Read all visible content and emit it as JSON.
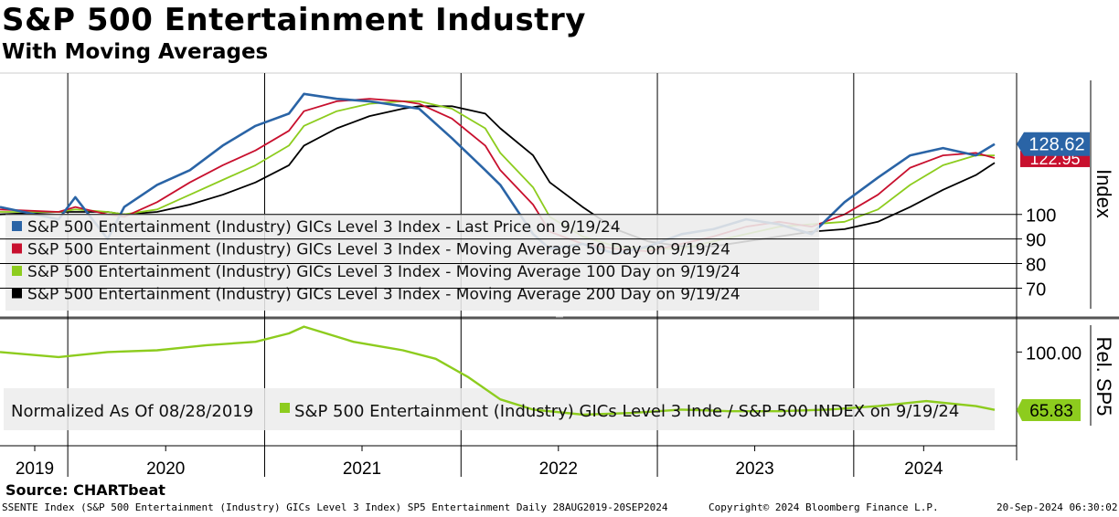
{
  "title": "S&P 500 Entertainment Industry",
  "subtitle": "With Moving Averages",
  "source": "Source: CHARTbeat",
  "footer": {
    "left": "SSENTE Index (S&P 500 Entertainment (Industry) GICs Level 3 Index) SP5 Entertainment  Daily 28AUG2019-20SEP2024",
    "center": "Copyright© 2024 Bloomberg Finance L.P.",
    "right": "20-Sep-2024 06:30:02"
  },
  "colors": {
    "price": "#2a64a6",
    "ma50": "#c8102e",
    "ma100": "#8dcc1e",
    "ma200": "#000000",
    "rel": "#8dcc1e"
  },
  "chart_data": [
    {
      "type": "line",
      "ylabel": "Index",
      "yticks": [
        70,
        80,
        90,
        100
      ],
      "ylim": [
        62,
        156
      ],
      "x": [
        "2019-08-28",
        "2019-12",
        "2020-01",
        "2020-03",
        "2020-04",
        "2020-06",
        "2020-08",
        "2020-10",
        "2020-12",
        "2021-02",
        "2021-03",
        "2021-05",
        "2021-07",
        "2021-09",
        "2021-10",
        "2021-12",
        "2022-02",
        "2022-03",
        "2022-05",
        "2022-06",
        "2022-08",
        "2022-10",
        "2022-12",
        "2023-02",
        "2023-04",
        "2023-06",
        "2023-08",
        "2023-10",
        "2023-12",
        "2024-02",
        "2024-04",
        "2024-06",
        "2024-08",
        "2024-09-19"
      ],
      "series": [
        {
          "name": "S&P 500 Entertainment (Industry) GICs Level 3 Index - Last Price on 9/19/24",
          "last": "128.62",
          "values": [
            103,
            98,
            107,
            90,
            103,
            112,
            118,
            128,
            136,
            141,
            149,
            147,
            146,
            144,
            143,
            131,
            118,
            112,
            92,
            86,
            88,
            84,
            87,
            92,
            94,
            98,
            96,
            92,
            105,
            115,
            124,
            127,
            124,
            128.62
          ]
        },
        {
          "name": "S&P 500 Entertainment (Industry) GICs Level 3 Index - Moving Average 50 Day on 9/19/24",
          "last": "122.95",
          "values": [
            102,
            101,
            103,
            100,
            99,
            105,
            113,
            120,
            126,
            134,
            142,
            146,
            147,
            146,
            145,
            139,
            128,
            118,
            104,
            93,
            88,
            86,
            85,
            88,
            91,
            95,
            97,
            95,
            100,
            108,
            119,
            124,
            125,
            122.95
          ]
        },
        {
          "name": "S&P 500 Entertainment (Industry) GICs Level 3 Index - Moving Average 100 Day on 9/19/24",
          "values": [
            101,
            101,
            102,
            101,
            100,
            102,
            108,
            114,
            120,
            128,
            136,
            142,
            145,
            146,
            146,
            143,
            135,
            125,
            111,
            99,
            91,
            87,
            86,
            86,
            89,
            92,
            95,
            96,
            97,
            102,
            112,
            120,
            124,
            124
          ]
        },
        {
          "name": "S&P 500 Entertainment (Industry) GICs Level 3 Index - Moving Average 200 Day on 9/19/24",
          "values": [
            100,
            101,
            101,
            101,
            100,
            101,
            104,
            108,
            113,
            120,
            128,
            135,
            140,
            143,
            144,
            144,
            141,
            135,
            124,
            113,
            103,
            94,
            89,
            87,
            87,
            89,
            91,
            93,
            94,
            97,
            103,
            110,
            116,
            121
          ]
        }
      ]
    },
    {
      "type": "line",
      "ylabel": "Rel. SP5",
      "yticks": [
        100.0
      ],
      "ytick_labels": [
        "100.00"
      ],
      "ylim": [
        50,
        118
      ],
      "note": "Normalized As Of 08/28/2019",
      "x": [
        "2019-08-28",
        "2019-12",
        "2020-03",
        "2020-06",
        "2020-09",
        "2020-12",
        "2021-02",
        "2021-03",
        "2021-06",
        "2021-09",
        "2021-11",
        "2022-01",
        "2022-03",
        "2022-05",
        "2022-08",
        "2022-11",
        "2023-02",
        "2023-05",
        "2023-08",
        "2023-11",
        "2024-02",
        "2024-05",
        "2024-08",
        "2024-09-19"
      ],
      "series": [
        {
          "name": "S&P 500 Entertainment (Industry) GICs Level 3 Inde / S&P 500 INDEX on 9/19/24",
          "last": "65.83",
          "values": [
            100,
            97,
            100,
            101,
            104,
            106,
            111,
            115,
            106,
            101,
            96,
            85,
            72,
            66,
            63,
            64,
            66,
            65,
            65,
            66,
            68,
            71,
            68,
            65.83
          ]
        }
      ]
    }
  ],
  "xaxis": {
    "years": [
      "2019",
      "2020",
      "2021",
      "2022",
      "2023",
      "2024"
    ]
  }
}
